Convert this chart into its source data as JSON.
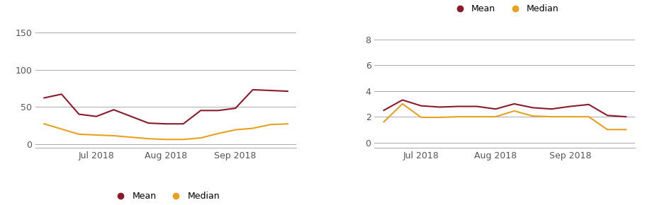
{
  "left_mean": [
    62,
    67,
    40,
    37,
    46,
    37,
    28,
    27,
    27,
    45,
    45,
    48,
    73,
    72,
    71
  ],
  "left_median": [
    27,
    20,
    13,
    12,
    11,
    9,
    7,
    6,
    6,
    8,
    14,
    19,
    21,
    26,
    27
  ],
  "left_yticks": [
    0,
    50,
    100,
    150
  ],
  "left_ylim": [
    -5,
    158
  ],
  "left_xtick_pos": [
    3,
    7,
    11
  ],
  "left_xtick_labels": [
    "Jul 2018",
    "Aug 2018",
    "Sep 2018"
  ],
  "right_mean": [
    2.5,
    3.3,
    2.85,
    2.75,
    2.8,
    2.8,
    2.6,
    3.0,
    2.7,
    2.6,
    2.8,
    2.95,
    2.1,
    2.0
  ],
  "right_median": [
    1.6,
    3.0,
    1.95,
    1.95,
    2.0,
    2.0,
    2.0,
    2.45,
    2.05,
    2.0,
    2.0,
    2.0,
    1.0,
    1.0
  ],
  "right_yticks": [
    0,
    2,
    4,
    6,
    8
  ],
  "right_ylim": [
    -0.4,
    9.0
  ],
  "right_xtick_pos": [
    2,
    6,
    10
  ],
  "right_xtick_labels": [
    "Jul 2018",
    "Aug 2018",
    "Sep 2018"
  ],
  "mean_color": "#8B1A2A",
  "median_color": "#E8A020",
  "line_width": 1.5,
  "bg_color": "#ffffff",
  "grid_color": "#aaaaaa",
  "tick_color": "#555555",
  "font_size": 9,
  "legend_font_size": 9,
  "dot_size": 6
}
